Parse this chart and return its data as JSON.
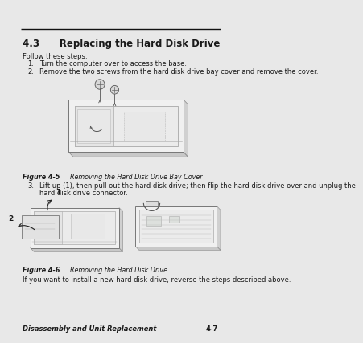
{
  "bg_color": "#e8e8e8",
  "page_bg": "#ffffff",
  "text_color": "#1a1a1a",
  "line_color": "#111111",
  "title": "4.3      Replacing the Hard Disk Drive",
  "intro_text": "Follow these steps:",
  "step1_num": "1.",
  "step1_text": "Turn the computer over to access the base.",
  "step2_num": "2.",
  "step2_text": "Remove the two screws from the hard disk drive bay cover and remove the cover.",
  "fig45_bold": "Figure 4-5",
  "fig45_caption": "      Removing the Hard Disk Drive Bay Cover",
  "step3_num": "3.",
  "step3_line1": "Lift up (1), then pull out the hard disk drive; then flip the hard disk drive over and unplug the",
  "step3_line2": "hard disk drive connector.",
  "fig46_bold": "Figure 4-6",
  "fig46_caption": "      Removing the Hard Disk Drive",
  "closing_text": "If you want to install a new hard disk drive, reverse the steps described above.",
  "footer_left": "Disassembly and Unit Replacement",
  "footer_right": "4-7"
}
